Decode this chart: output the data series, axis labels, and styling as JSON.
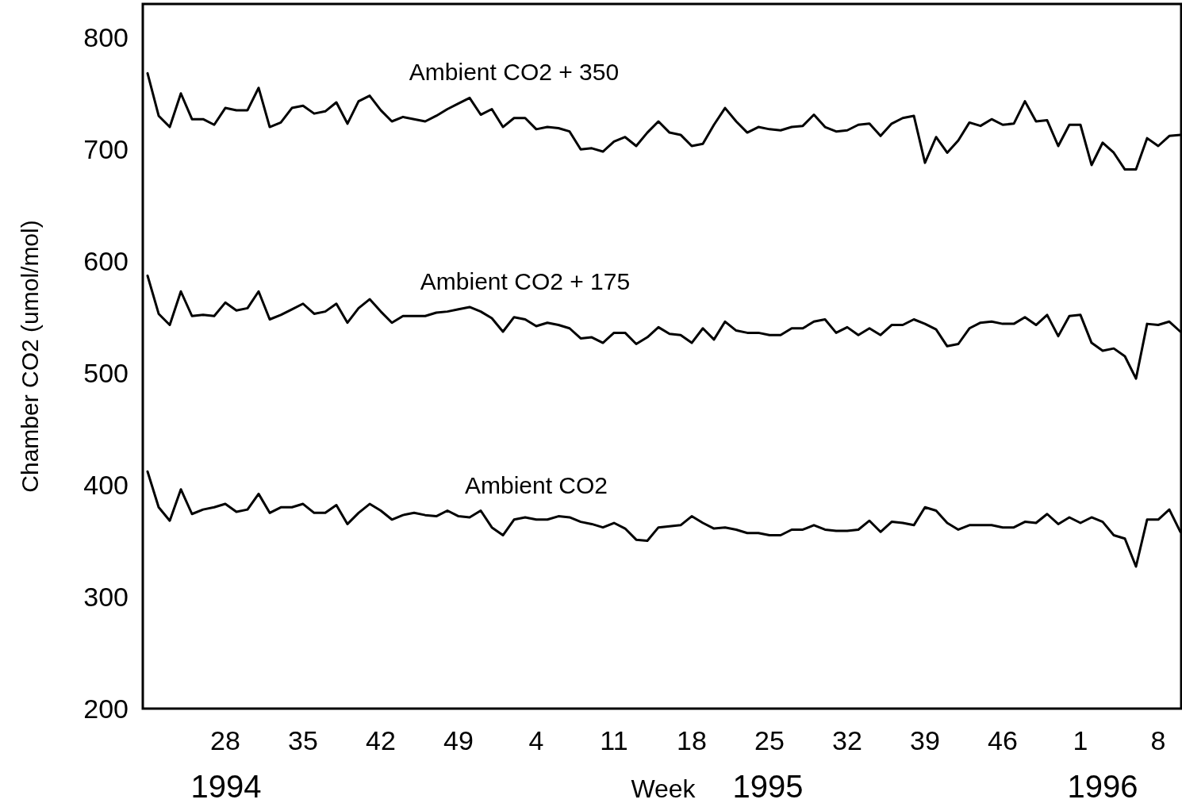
{
  "chart_data": {
    "type": "line",
    "ylabel": "Chamber CO2 (umol/mol)",
    "xlabel": "Week",
    "categories": [
      null,
      null,
      null,
      null,
      null,
      null,
      null,
      "28",
      null,
      null,
      null,
      null,
      null,
      null,
      "35",
      null,
      null,
      null,
      null,
      null,
      null,
      "42",
      null,
      null,
      null,
      null,
      null,
      null,
      "49",
      null,
      null,
      null,
      null,
      null,
      null,
      "4",
      null,
      null,
      null,
      null,
      null,
      null,
      "11",
      null,
      null,
      null,
      null,
      null,
      null,
      "18",
      null,
      null,
      null,
      null,
      null,
      null,
      "25",
      null,
      null,
      null,
      null,
      null,
      null,
      "32",
      null,
      null,
      null,
      null,
      null,
      null,
      "39",
      null,
      null,
      null,
      null,
      null,
      null,
      "46",
      null,
      null,
      null,
      null,
      null,
      null,
      "1",
      null,
      null,
      null,
      null,
      null,
      null,
      "8",
      null,
      null
    ],
    "ylim": [
      200,
      830
    ],
    "yticks": [
      200,
      300,
      400,
      500,
      600,
      700,
      800
    ],
    "grid": false,
    "legend": false,
    "marker": "none",
    "line_style": "solid",
    "series": [
      {
        "name": "Ambient CO2 + 350",
        "color": "#000000",
        "values": [
          768,
          730,
          720,
          750,
          727,
          727,
          722,
          737,
          735,
          735,
          755,
          720,
          724,
          737,
          739,
          732,
          734,
          742,
          723,
          743,
          748,
          735,
          725,
          729,
          727,
          725,
          730,
          736,
          741,
          746,
          731,
          736,
          720,
          728,
          728,
          718,
          720,
          719,
          716,
          700,
          701,
          698,
          707,
          711,
          703,
          715,
          725,
          715,
          713,
          703,
          705,
          722,
          737,
          725,
          715,
          720,
          718,
          717,
          720,
          721,
          731,
          720,
          716,
          717,
          722,
          723,
          712,
          723,
          728,
          730,
          688,
          711,
          697,
          708,
          724,
          721,
          727,
          722,
          723,
          743,
          725,
          726,
          703,
          722,
          722,
          686,
          706,
          697,
          682,
          682,
          710,
          703,
          712,
          713
        ]
      },
      {
        "name": "Ambient CO2 + 175",
        "color": "#000000",
        "values": [
          587,
          553,
          543,
          573,
          551,
          552,
          551,
          563,
          556,
          558,
          573,
          548,
          552,
          557,
          562,
          553,
          555,
          562,
          545,
          558,
          566,
          555,
          545,
          551,
          551,
          551,
          554,
          555,
          557,
          559,
          555,
          549,
          537,
          550,
          548,
          542,
          545,
          543,
          540,
          531,
          532,
          527,
          536,
          536,
          526,
          532,
          541,
          535,
          534,
          527,
          540,
          530,
          546,
          538,
          536,
          536,
          534,
          534,
          540,
          540,
          546,
          548,
          536,
          541,
          534,
          540,
          534,
          543,
          543,
          548,
          544,
          539,
          524,
          526,
          540,
          545,
          546,
          544,
          544,
          550,
          543,
          552,
          533,
          551,
          552,
          527,
          520,
          522,
          515,
          495,
          544,
          543,
          546,
          537
        ]
      },
      {
        "name": "Ambient CO2",
        "color": "#000000",
        "values": [
          412,
          380,
          368,
          396,
          374,
          378,
          380,
          383,
          376,
          378,
          392,
          375,
          380,
          380,
          383,
          375,
          375,
          382,
          365,
          375,
          383,
          377,
          369,
          373,
          375,
          373,
          372,
          377,
          372,
          371,
          377,
          362,
          355,
          369,
          371,
          369,
          369,
          372,
          371,
          367,
          365,
          362,
          366,
          361,
          351,
          350,
          362,
          363,
          364,
          372,
          366,
          361,
          362,
          360,
          357,
          357,
          355,
          355,
          360,
          360,
          364,
          360,
          359,
          359,
          360,
          368,
          358,
          367,
          366,
          364,
          380,
          377,
          366,
          360,
          364,
          364,
          364,
          362,
          362,
          367,
          366,
          374,
          365,
          371,
          366,
          371,
          367,
          355,
          352,
          327,
          369,
          369,
          378,
          358
        ]
      }
    ],
    "annotations": [
      "1994",
      "1995",
      "1996"
    ]
  }
}
